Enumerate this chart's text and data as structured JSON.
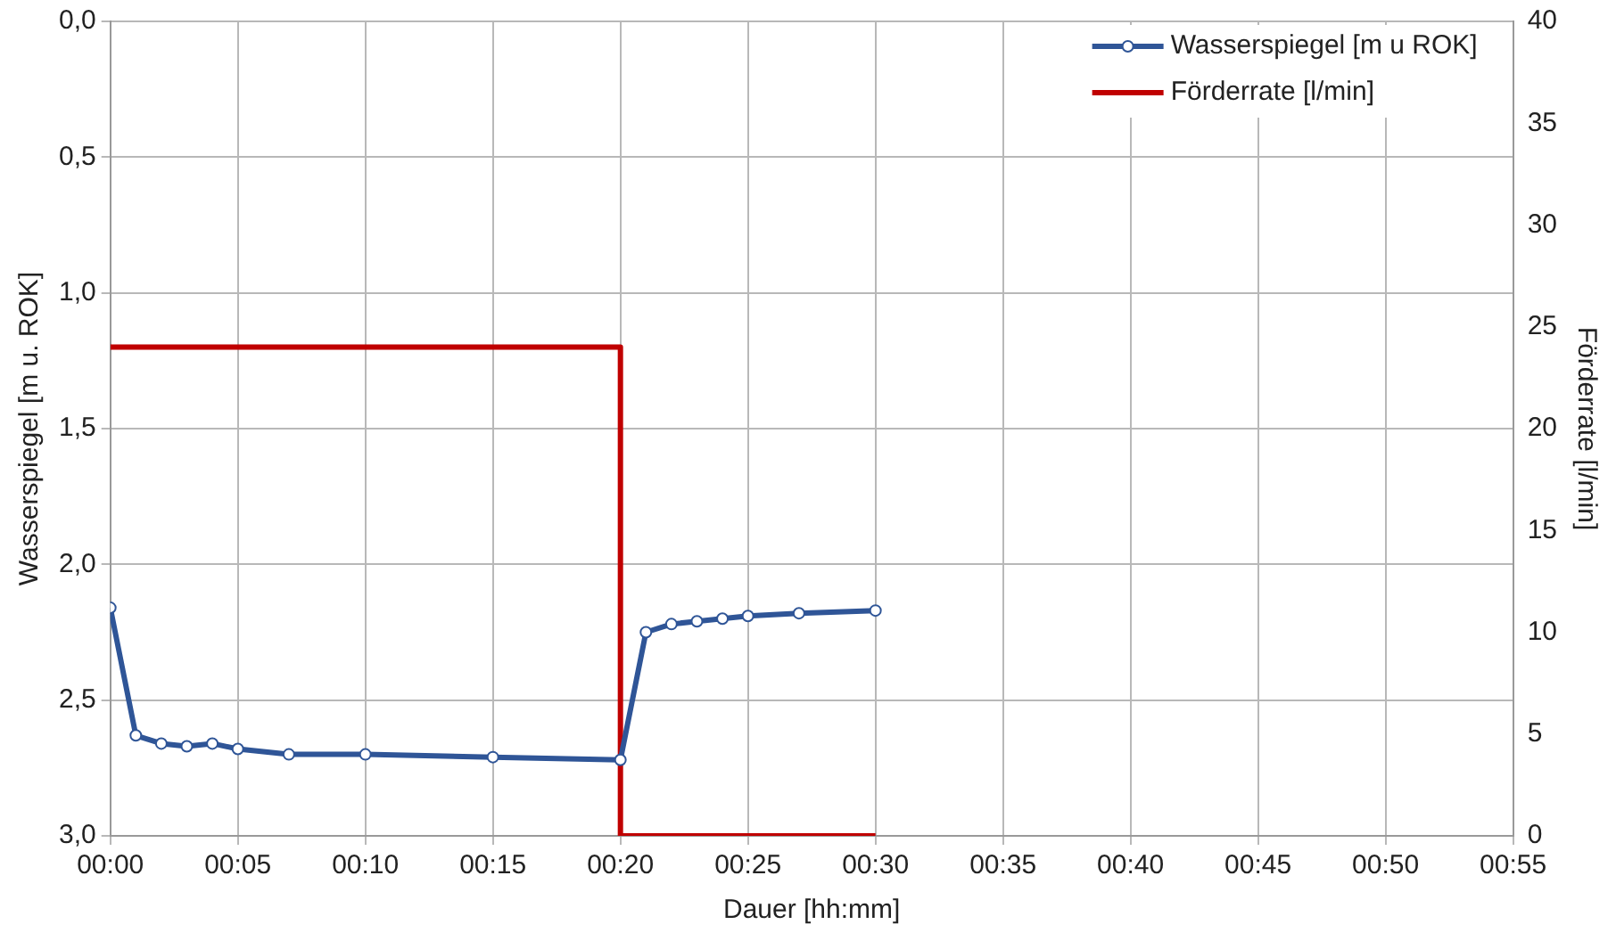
{
  "chart_data": {
    "type": "line",
    "xlabel": "Dauer [hh:mm]",
    "ylabel": "Wasserspiegel [m u. ROK]",
    "y2label": "Förderrate [l/min]",
    "xlim": [
      0,
      55
    ],
    "xticks": [
      {
        "value": 0,
        "label": "00:00"
      },
      {
        "value": 5,
        "label": "00:05"
      },
      {
        "value": 10,
        "label": "00:10"
      },
      {
        "value": 15,
        "label": "00:15"
      },
      {
        "value": 20,
        "label": "00:20"
      },
      {
        "value": 25,
        "label": "00:25"
      },
      {
        "value": 30,
        "label": "00:30"
      },
      {
        "value": 35,
        "label": "00:35"
      },
      {
        "value": 40,
        "label": "00:40"
      },
      {
        "value": 45,
        "label": "00:45"
      },
      {
        "value": 50,
        "label": "00:50"
      },
      {
        "value": 55,
        "label": "00:55"
      }
    ],
    "ylim": [
      3,
      0
    ],
    "yticks": [
      {
        "value": 0,
        "label": "0,0"
      },
      {
        "value": 0.5,
        "label": "0,5"
      },
      {
        "value": 1,
        "label": "1,0"
      },
      {
        "value": 1.5,
        "label": "1,5"
      },
      {
        "value": 2,
        "label": "2,0"
      },
      {
        "value": 2.5,
        "label": "2,5"
      },
      {
        "value": 3,
        "label": "3,0"
      }
    ],
    "y2lim": [
      0,
      40
    ],
    "y2ticks": [
      0,
      5,
      10,
      15,
      20,
      25,
      30,
      35,
      40
    ],
    "grid": true,
    "legend": "top right",
    "line_style": "solid",
    "series": [
      {
        "name": "Wasserspiegel [m u ROK]",
        "color": "#2f5597",
        "marker": "circle",
        "x": [
          0,
          1,
          2,
          3,
          4,
          5,
          7,
          10,
          15,
          20,
          21,
          22,
          23,
          24,
          25,
          27,
          30
        ],
        "values": [
          2.16,
          2.63,
          2.66,
          2.67,
          2.66,
          2.68,
          2.7,
          2.7,
          2.71,
          2.72,
          2.25,
          2.22,
          2.21,
          2.2,
          2.19,
          2.18,
          2.17
        ]
      },
      {
        "name": "Förderrate [l/min]",
        "color": "#c00000",
        "marker": "none",
        "axis": "y2",
        "x": [
          0,
          20,
          20,
          30
        ],
        "values": [
          24,
          24,
          0,
          0
        ]
      }
    ]
  }
}
